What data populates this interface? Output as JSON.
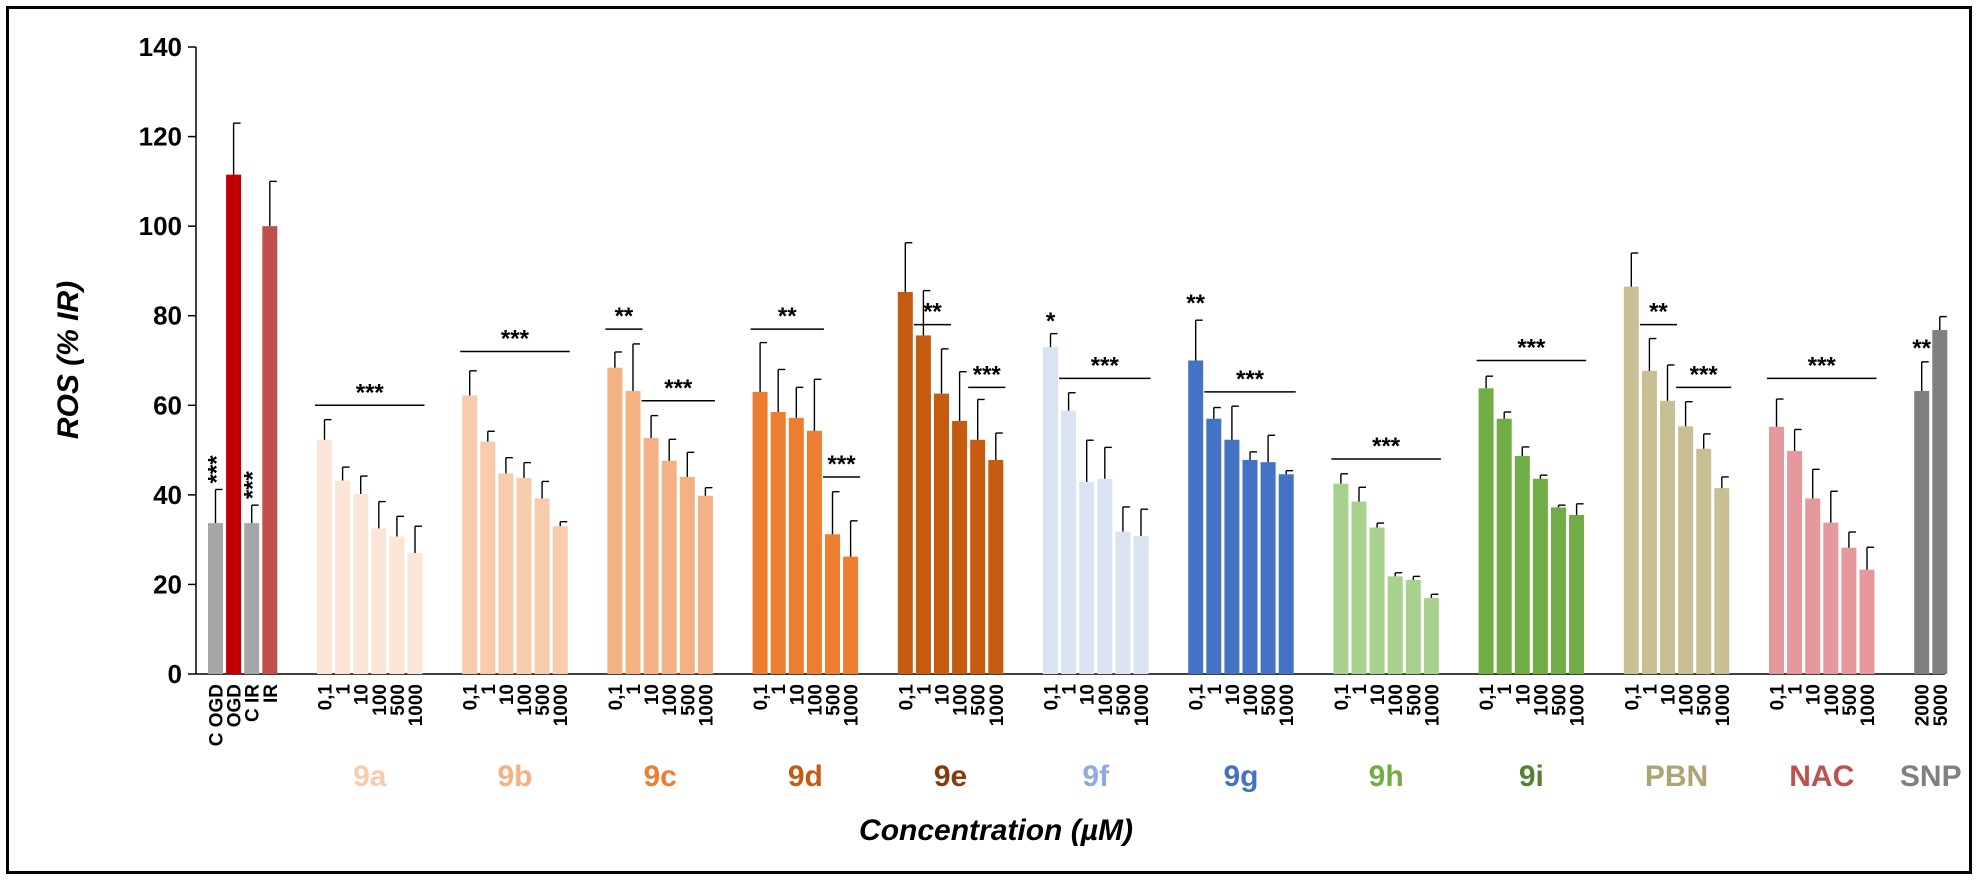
{
  "chart_data": {
    "type": "bar",
    "ylabel": "ROS (% IR)",
    "xlabel": "Concentration (µM)",
    "ylim": [
      0,
      140
    ],
    "yticks": [
      0,
      20,
      40,
      60,
      80,
      100,
      120,
      140
    ],
    "grid": false,
    "error_bars": true,
    "groups": [
      {
        "name": "",
        "color": "#a6a6a6",
        "bars": [
          {
            "label": "C OGD",
            "value": 33.7,
            "error": 7.5,
            "color": "#a6a6a6",
            "sig": "***"
          },
          {
            "label": "OGD",
            "value": 111.5,
            "error": 11.5,
            "color": "#c00000",
            "sig": ""
          },
          {
            "label": "C IR",
            "value": 33.7,
            "error": 4.0,
            "color": "#a6a6a6",
            "sig": "***"
          },
          {
            "label": "IR",
            "value": 100,
            "error": 10,
            "color": "#c0504d",
            "sig": ""
          }
        ]
      },
      {
        "name": "9a",
        "color": "#fbe5d6",
        "bars": [
          {
            "label": "0,1",
            "value": 52.3,
            "error": 4.5
          },
          {
            "label": "1",
            "value": 43.2,
            "error": 3.0
          },
          {
            "label": "10",
            "value": 40.2,
            "error": 4.0
          },
          {
            "label": "100",
            "value": 32.5,
            "error": 6.0
          },
          {
            "label": "500",
            "value": 30.7,
            "error": 4.5
          },
          {
            "label": "1000",
            "value": 27.0,
            "error": 6.0
          }
        ],
        "sig": [
          {
            "text": "***",
            "from": 0,
            "to": 5,
            "y": 60
          }
        ]
      },
      {
        "name": "9b",
        "color": "#f8cbad",
        "bars": [
          {
            "label": "0,1",
            "value": 62.2,
            "error": 5.5
          },
          {
            "label": "1",
            "value": 51.9,
            "error": 2.3
          },
          {
            "label": "10",
            "value": 44.8,
            "error": 3.5
          },
          {
            "label": "100",
            "value": 43.8,
            "error": 3.4
          },
          {
            "label": "500",
            "value": 39.2,
            "error": 3.8
          },
          {
            "label": "1000",
            "value": 33.0,
            "error": 1.0
          }
        ],
        "sig": [
          {
            "text": "***",
            "from": 0,
            "to": 5,
            "y": 72
          }
        ]
      },
      {
        "name": "9c",
        "color": "#f4b183",
        "bars": [
          {
            "label": "0,1",
            "value": 68.4,
            "error": 3.5
          },
          {
            "label": "1",
            "value": 63.2,
            "error": 10.5
          },
          {
            "label": "10",
            "value": 52.7,
            "error": 5.0
          },
          {
            "label": "100",
            "value": 47.6,
            "error": 4.8
          },
          {
            "label": "500",
            "value": 44.0,
            "error": 5.5
          },
          {
            "label": "1000",
            "value": 39.8,
            "error": 1.8
          }
        ],
        "sig": [
          {
            "text": "**",
            "from": 0,
            "to": 1,
            "y": 77
          },
          {
            "text": "***",
            "from": 2,
            "to": 5,
            "y": 61
          }
        ]
      },
      {
        "name": "9d",
        "color": "#ed7d31",
        "bars": [
          {
            "label": "0,1",
            "value": 63.0,
            "error": 11.0
          },
          {
            "label": "1",
            "value": 58.5,
            "error": 9.5
          },
          {
            "label": "10",
            "value": 57.2,
            "error": 6.8
          },
          {
            "label": "100",
            "value": 54.3,
            "error": 11.5
          },
          {
            "label": "500",
            "value": 31.2,
            "error": 9.5
          },
          {
            "label": "1000",
            "value": 26.2,
            "error": 8.0
          }
        ],
        "sig": [
          {
            "text": "**",
            "from": 0,
            "to": 3,
            "y": 77
          },
          {
            "text": "***",
            "from": 4,
            "to": 5,
            "y": 44
          }
        ]
      },
      {
        "name": "9e",
        "color": "#c55a11",
        "bars": [
          {
            "label": "0,1",
            "value": 85.3,
            "error": 11.0
          },
          {
            "label": "1",
            "value": 75.6,
            "error": 10.0
          },
          {
            "label": "10",
            "value": 62.6,
            "error": 10.0
          },
          {
            "label": "100",
            "value": 56.5,
            "error": 11.0
          },
          {
            "label": "500",
            "value": 52.3,
            "error": 9.0
          },
          {
            "label": "1000",
            "value": 47.8,
            "error": 6.0
          }
        ],
        "sig": [
          {
            "text": "**",
            "from": 1,
            "to": 2,
            "y": 78
          },
          {
            "text": "***",
            "from": 4,
            "to": 5,
            "y": 64
          }
        ]
      },
      {
        "name": "9f",
        "color": "#dae3f3",
        "bars": [
          {
            "label": "0,1",
            "value": 73.0,
            "error": 3.0
          },
          {
            "label": "1",
            "value": 58.8,
            "error": 4.0
          },
          {
            "label": "10",
            "value": 42.9,
            "error": 9.3
          },
          {
            "label": "100",
            "value": 43.6,
            "error": 7.0
          },
          {
            "label": "500",
            "value": 31.8,
            "error": 5.5
          },
          {
            "label": "1000",
            "value": 30.8,
            "error": 6.0
          }
        ],
        "sig": [
          {
            "text": "*",
            "y": 77,
            "at": 0
          },
          {
            "text": "***",
            "from": 1,
            "to": 5,
            "y": 66
          }
        ]
      },
      {
        "name": "9g",
        "color": "#4472c4",
        "bars": [
          {
            "label": "0,1",
            "value": 70.0,
            "error": 9.0
          },
          {
            "label": "1",
            "value": 57.0,
            "error": 2.5
          },
          {
            "label": "10",
            "value": 52.3,
            "error": 7.5
          },
          {
            "label": "100",
            "value": 47.8,
            "error": 1.8
          },
          {
            "label": "500",
            "value": 47.3,
            "error": 6.0
          },
          {
            "label": "1000",
            "value": 44.6,
            "error": 0.8
          }
        ],
        "sig": [
          {
            "text": "**",
            "y": 81,
            "at": 0
          },
          {
            "text": "***",
            "from": 1,
            "to": 5,
            "y": 63
          }
        ]
      },
      {
        "name": "9h",
        "color": "#a9d18e",
        "bars": [
          {
            "label": "0,1",
            "value": 42.5,
            "error": 2.2
          },
          {
            "label": "1",
            "value": 38.5,
            "error": 3.2
          },
          {
            "label": "10",
            "value": 32.7,
            "error": 1.0
          },
          {
            "label": "100",
            "value": 21.8,
            "error": 0.8
          },
          {
            "label": "500",
            "value": 21.0,
            "error": 0.8
          },
          {
            "label": "1000",
            "value": 17.0,
            "error": 0.8
          }
        ],
        "sig": [
          {
            "text": "***",
            "from": 0,
            "to": 5,
            "y": 48
          }
        ]
      },
      {
        "name": "9i",
        "color": "#70ad47",
        "bars": [
          {
            "label": "0,1",
            "value": 63.8,
            "error": 2.7
          },
          {
            "label": "1",
            "value": 57.0,
            "error": 1.5
          },
          {
            "label": "10",
            "value": 48.7,
            "error": 2.0
          },
          {
            "label": "100",
            "value": 43.6,
            "error": 0.8
          },
          {
            "label": "500",
            "value": 37.2,
            "error": 0.5
          },
          {
            "label": "1000",
            "value": 35.5,
            "error": 2.5
          }
        ],
        "sig": [
          {
            "text": "***",
            "from": 0,
            "to": 5,
            "y": 70
          }
        ]
      },
      {
        "name": "PBN",
        "color": "#c9bf95",
        "bars": [
          {
            "label": "0,1",
            "value": 86.5,
            "error": 7.5
          },
          {
            "label": "1",
            "value": 67.7,
            "error": 7.2
          },
          {
            "label": "10",
            "value": 61.0,
            "error": 8.0
          },
          {
            "label": "100",
            "value": 55.3,
            "error": 5.5
          },
          {
            "label": "500",
            "value": 50.3,
            "error": 3.3
          },
          {
            "label": "1000",
            "value": 41.5,
            "error": 2.5
          }
        ],
        "sig": [
          {
            "text": "**",
            "from": 1,
            "to": 2,
            "y": 78
          },
          {
            "text": "***",
            "from": 3,
            "to": 5,
            "y": 64
          }
        ]
      },
      {
        "name": "NAC",
        "color": "#e6999c",
        "bars": [
          {
            "label": "0,1",
            "value": 55.2,
            "error": 6.2
          },
          {
            "label": "1",
            "value": 49.8,
            "error": 4.8
          },
          {
            "label": "10",
            "value": 39.2,
            "error": 6.5
          },
          {
            "label": "100",
            "value": 33.8,
            "error": 7.0
          },
          {
            "label": "500",
            "value": 28.2,
            "error": 3.5
          },
          {
            "label": "1000",
            "value": 23.3,
            "error": 5.0
          }
        ],
        "sig": [
          {
            "text": "***",
            "from": 0,
            "to": 5,
            "y": 66
          }
        ]
      },
      {
        "name": "SNP",
        "color": "#808080",
        "bars": [
          {
            "label": "2000",
            "value": 63.2,
            "error": 6.5
          },
          {
            "label": "5000",
            "value": 76.8,
            "error": 3.0
          }
        ],
        "sig": [
          {
            "text": "**",
            "y": 71,
            "at": 0
          }
        ]
      }
    ],
    "group_label_colors": {
      "9a": "#f8cbad",
      "9b": "#f4b183",
      "9c": "#ed7d31",
      "9d": "#c55a11",
      "9e": "#843c0c",
      "9f": "#8faadc",
      "9g": "#4472c4",
      "9h": "#70ad47",
      "9i": "#548235",
      "PBN": "#aea373",
      "NAC": "#c0504d",
      "SNP": "#808080"
    }
  }
}
